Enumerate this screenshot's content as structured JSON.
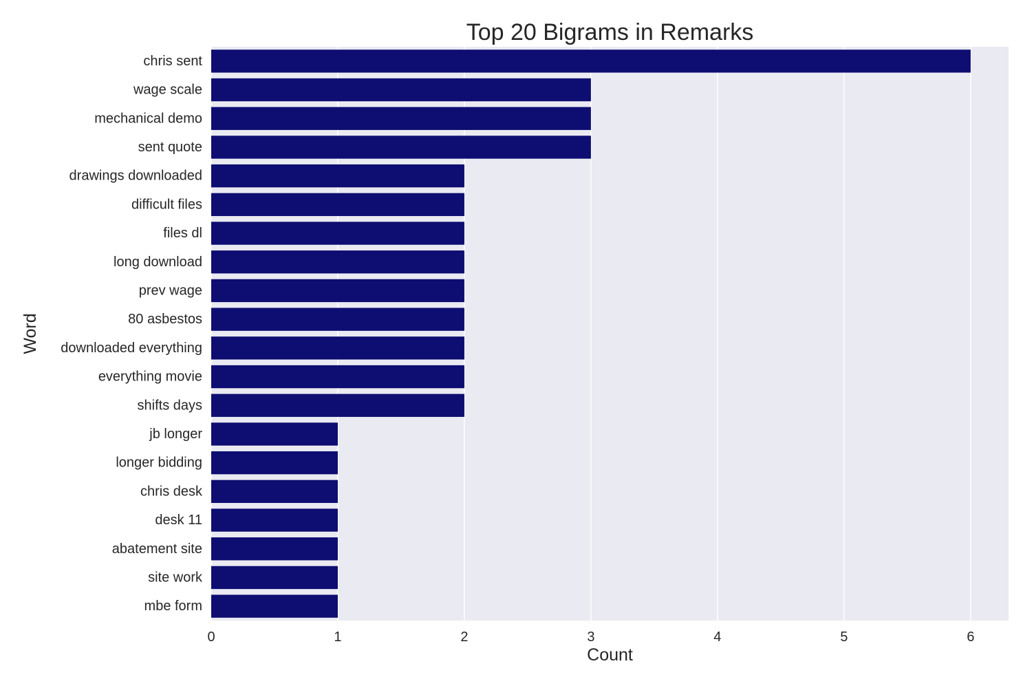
{
  "chart_data": {
    "type": "bar",
    "orientation": "horizontal",
    "title": "Top 20 Bigrams in Remarks",
    "xlabel": "Count",
    "ylabel": "Word",
    "xlim": [
      0,
      6.3
    ],
    "xticks": [
      0,
      1,
      2,
      3,
      4,
      5,
      6
    ],
    "grid": true,
    "bar_color": "#0d0d72",
    "background_color": "#eaeaf2",
    "grid_color": "#ffffff",
    "categories": [
      "chris sent",
      "wage scale",
      "mechanical demo",
      "sent quote",
      "drawings downloaded",
      "difficult files",
      "files dl",
      "long download",
      "prev wage",
      "80 asbestos",
      "downloaded everything",
      "everything movie",
      "shifts days",
      "jb longer",
      "longer bidding",
      "chris desk",
      "desk 11",
      "abatement site",
      "site work",
      "mbe form"
    ],
    "values": [
      6,
      3,
      3,
      3,
      2,
      2,
      2,
      2,
      2,
      2,
      2,
      2,
      2,
      1,
      1,
      1,
      1,
      1,
      1,
      1
    ]
  }
}
